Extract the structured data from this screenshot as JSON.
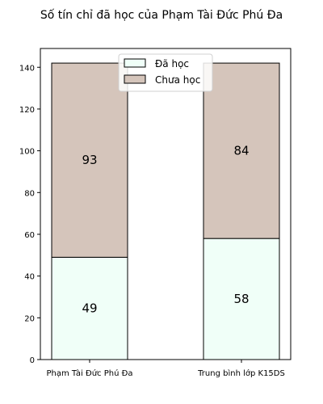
{
  "chart_data": {
    "type": "bar",
    "stacked": true,
    "title": "Số tín chỉ đã học của Phạm Tài Đức Phú Đa",
    "xlabel": "",
    "ylabel": "",
    "categories": [
      "Phạm Tài Đức Phú Đa",
      "Trung bình lớp K15DS"
    ],
    "series": [
      {
        "name": "Đã học",
        "values": [
          49,
          58
        ],
        "color": "#f0fff8"
      },
      {
        "name": "Chưa học",
        "values": [
          93,
          84
        ],
        "color": "#d5c5bb"
      }
    ],
    "data_labels": [
      [
        "49",
        "58"
      ],
      [
        "93",
        "84"
      ]
    ],
    "ylim": [
      0,
      149
    ],
    "yticks": [
      0,
      20,
      40,
      60,
      80,
      100,
      120,
      140
    ],
    "grid": false,
    "legend_position": "top-center"
  }
}
